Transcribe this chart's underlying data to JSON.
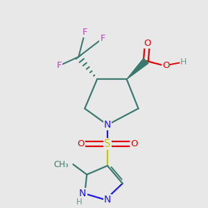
{
  "background_color": "#e8e8e8",
  "colors": {
    "C": "#3a7a6e",
    "N": "#1a1ae6",
    "O": "#e00000",
    "S": "#c8c800",
    "F": "#c040c0",
    "H": "#6a9a8e",
    "bond": "#3a7a6e"
  },
  "figsize": [
    3.0,
    3.0
  ],
  "dpi": 100
}
